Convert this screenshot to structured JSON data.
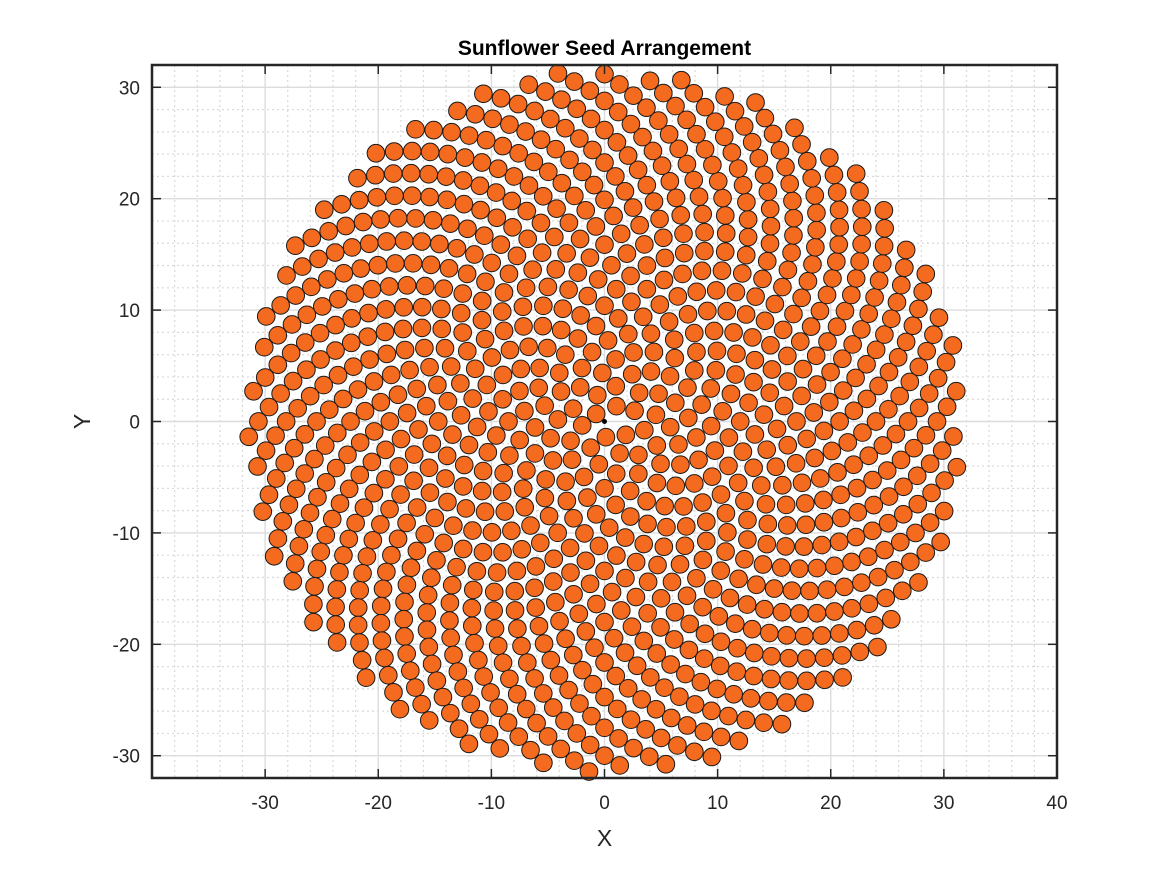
{
  "chart_data": {
    "type": "scatter",
    "title": "Sunflower Seed Arrangement",
    "xlabel": "X",
    "ylabel": "Y",
    "xlim": [
      -40,
      40
    ],
    "ylim": [
      -32,
      32
    ],
    "xticks": [
      -30,
      -20,
      -10,
      0,
      10,
      20,
      30,
      40
    ],
    "yticks": [
      -30,
      -20,
      -10,
      0,
      10,
      20,
      30
    ],
    "xtick_labels": [
      "-30",
      "-20",
      "-10",
      "0",
      "10",
      "20",
      "30",
      "40"
    ],
    "ytick_labels": [
      "-30",
      "-20",
      "-10",
      "0",
      "10",
      "20",
      "30"
    ],
    "grid": "on (major and minor)",
    "box": true,
    "series": [
      {
        "pattern": "phyllotaxis (Vogel spiral)",
        "count": 1000,
        "golden_angle_deg": 137.5,
        "scale": 1,
        "radius_rule": "sqrt(n)",
        "marker": "circle",
        "marker_face_color": "#f46a1e",
        "marker_edge_color": "#1a1a1a"
      }
    ],
    "center_marker_color": "#000000"
  },
  "colors": {
    "grid": "#d9d9d9",
    "axes": "#262626",
    "background": "#ffffff"
  }
}
